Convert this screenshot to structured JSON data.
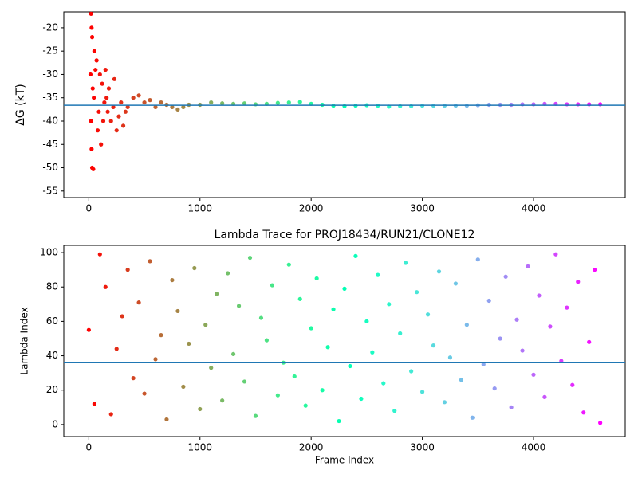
{
  "chart_data": [
    {
      "type": "scatter",
      "ylabel": "ΔG (kT)",
      "colormap": "rainbow_r",
      "x": [
        20,
        25,
        30,
        15,
        20,
        25,
        30,
        40,
        50,
        60,
        35,
        45,
        70,
        80,
        90,
        100,
        110,
        120,
        130,
        140,
        150,
        160,
        170,
        180,
        200,
        220,
        230,
        250,
        270,
        290,
        310,
        330,
        350,
        400,
        450,
        500,
        550,
        600,
        650,
        700,
        750,
        800,
        850,
        900,
        1000,
        1100,
        1200,
        1300,
        1400,
        1500,
        1600,
        1700,
        1800,
        1900,
        2000,
        2100,
        2200,
        2300,
        2400,
        2500,
        2600,
        2700,
        2800,
        2900,
        3000,
        3100,
        3200,
        3300,
        3400,
        3500,
        3600,
        3700,
        3800,
        3900,
        4000,
        4100,
        4200,
        4300,
        4400,
        4500,
        4600
      ],
      "values": [
        -17,
        -20,
        -22,
        -30,
        -40,
        -46,
        -50,
        -50.3,
        -25,
        -29,
        -33,
        -35,
        -27,
        -42,
        -38,
        -30,
        -45,
        -32,
        -40,
        -36,
        -29,
        -35,
        -38,
        -33,
        -40,
        -37,
        -31,
        -42,
        -39,
        -36,
        -41,
        -38,
        -37,
        -35,
        -34.5,
        -36,
        -35.5,
        -37,
        -36,
        -36.5,
        -37,
        -37.5,
        -37,
        -36.5,
        -36.5,
        -36,
        -36.2,
        -36.3,
        -36.2,
        -36.4,
        -36.3,
        -36.1,
        -36,
        -35.9,
        -36.3,
        -36.5,
        -36.7,
        -36.8,
        -36.7,
        -36.6,
        -36.7,
        -36.9,
        -36.8,
        -36.8,
        -36.7,
        -36.7,
        -36.7,
        -36.7,
        -36.7,
        -36.6,
        -36.5,
        -36.5,
        -36.5,
        -36.4,
        -36.4,
        -36.3,
        -36.3,
        -36.4,
        -36.4,
        -36.4,
        -36.4
      ],
      "reference_line": -36.6,
      "reference_line_color": "#1f77b4",
      "xlim": [
        -225,
        4825
      ],
      "ylim": [
        -56.4,
        -16.6
      ],
      "xticks": [
        0,
        1000,
        2000,
        3000,
        4000
      ],
      "yticks": [
        -55,
        -50,
        -45,
        -40,
        -35,
        -30,
        -25,
        -20
      ]
    },
    {
      "type": "scatter",
      "title": "Lambda Trace for PROJ18434/RUN21/CLONE12",
      "xlabel": "Frame Index",
      "ylabel": "Lambda Index",
      "colormap": "rainbow_r",
      "x": [
        0,
        50,
        100,
        150,
        200,
        250,
        300,
        350,
        400,
        450,
        500,
        550,
        600,
        650,
        700,
        750,
        800,
        850,
        900,
        950,
        1000,
        1050,
        1100,
        1150,
        1200,
        1250,
        1300,
        1350,
        1400,
        1450,
        1500,
        1550,
        1600,
        1650,
        1700,
        1750,
        1800,
        1850,
        1900,
        1950,
        2000,
        2050,
        2100,
        2150,
        2200,
        2250,
        2300,
        2350,
        2400,
        2450,
        2500,
        2550,
        2600,
        2650,
        2700,
        2750,
        2800,
        2850,
        2900,
        2950,
        3000,
        3050,
        3100,
        3150,
        3200,
        3250,
        3300,
        3350,
        3400,
        3450,
        3500,
        3550,
        3600,
        3650,
        3700,
        3750,
        3800,
        3850,
        3900,
        3950,
        4000,
        4050,
        4100,
        4150,
        4200,
        4250,
        4300,
        4350,
        4400,
        4450,
        4500,
        4550,
        4600
      ],
      "values": [
        55,
        12,
        99,
        80,
        6,
        44,
        63,
        90,
        27,
        71,
        18,
        95,
        38,
        52,
        3,
        84,
        66,
        22,
        47,
        91,
        9,
        58,
        33,
        76,
        14,
        88,
        41,
        69,
        25,
        97,
        5,
        62,
        49,
        81,
        17,
        36,
        93,
        28,
        73,
        11,
        56,
        85,
        20,
        45,
        67,
        2,
        79,
        34,
        98,
        15,
        60,
        42,
        87,
        24,
        70,
        8,
        53,
        94,
        31,
        77,
        19,
        64,
        46,
        89,
        13,
        39,
        82,
        26,
        58,
        4,
        96,
        35,
        72,
        21,
        50,
        86,
        10,
        61,
        43,
        92,
        29,
        75,
        16,
        57,
        99,
        37,
        68,
        23,
        83,
        7,
        48,
        90,
        1
      ],
      "reference_line": 36,
      "reference_line_color": "#1f77b4",
      "xlim": [
        -225,
        4825
      ],
      "ylim": [
        -7,
        104.2
      ],
      "xticks": [
        0,
        1000,
        2000,
        3000,
        4000
      ],
      "yticks": [
        0,
        20,
        40,
        60,
        80,
        100
      ]
    }
  ]
}
